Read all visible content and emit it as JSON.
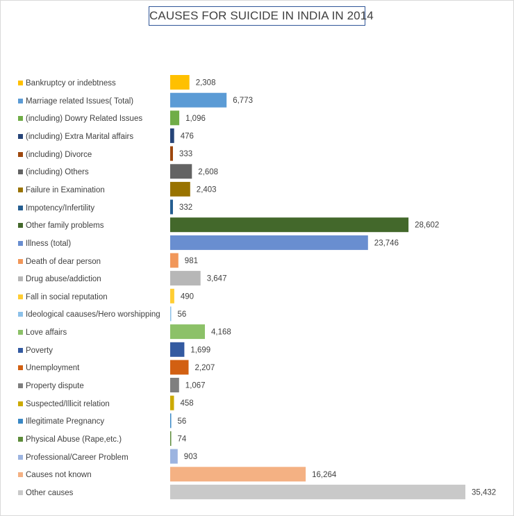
{
  "chart_data": {
    "type": "bar",
    "orientation": "horizontal",
    "title": "CAUSES FOR SUICIDE IN INDIA IN 2014",
    "xlabel": "",
    "ylabel": "",
    "xlim": [
      0,
      35432
    ],
    "grid": false,
    "legend": "left",
    "categories": [
      "Bankruptcy or indebtness",
      "Marriage related Issues( Total)",
      "(including) Dowry Related Issues",
      "(including) Extra Marital affairs",
      "(including) Divorce",
      "(including) Others",
      "Failure in Examination",
      "Impotency/Infertility",
      "Other family problems",
      "Illness (total)",
      "Death of dear person",
      "Drug abuse/addiction",
      "Fall in social reputation",
      "Ideological caauses/Hero worshipping",
      "Love affairs",
      "Poverty",
      "Unemployment",
      "Property dispute",
      "Suspected/Illicit relation",
      "Illegitimate Pregnancy",
      "Physical Abuse (Rape,etc.)",
      "Professional/Career Problem",
      "Causes not known",
      "Other causes"
    ],
    "values": [
      2308,
      6773,
      1096,
      476,
      333,
      2608,
      2403,
      332,
      28602,
      23746,
      981,
      3647,
      490,
      56,
      4168,
      1699,
      2207,
      1067,
      458,
      56,
      74,
      903,
      16264,
      35432
    ],
    "value_labels": [
      "2,308",
      "6,773",
      "1,096",
      "476",
      "333",
      "2,608",
      "2,403",
      "332",
      "28,602",
      "23,746",
      "981",
      "3,647",
      "490",
      "56",
      "4,168",
      "1,699",
      "2,207",
      "1,067",
      "458",
      "56",
      "74",
      "903",
      "16,264",
      "35,432"
    ],
    "colors": [
      "#ffc000",
      "#5b9bd5",
      "#70ad47",
      "#264478",
      "#9e480e",
      "#636363",
      "#997300",
      "#255e91",
      "#43682b",
      "#698ed0",
      "#f1975a",
      "#b7b7b7",
      "#ffcd33",
      "#8cc1e9",
      "#8cc168",
      "#335aa1",
      "#d26012",
      "#7f7f7f",
      "#ccaa00",
      "#3a88c5",
      "#5d8c3a",
      "#9cb4e0",
      "#f4b183",
      "#c9c9c9"
    ]
  }
}
